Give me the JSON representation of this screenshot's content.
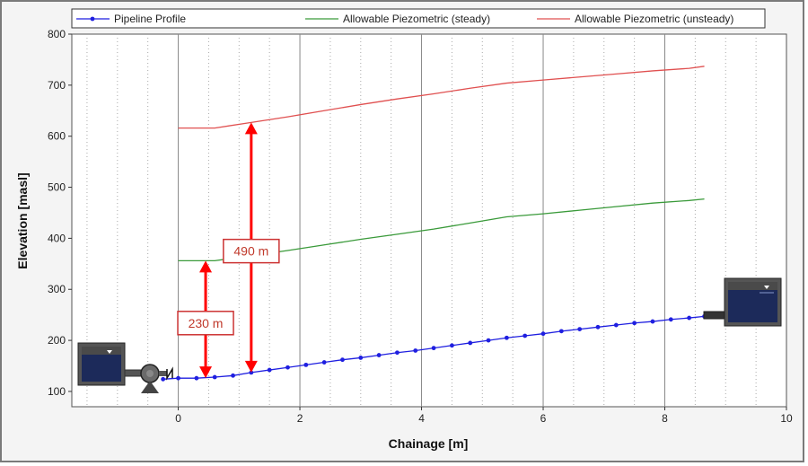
{
  "chart_data": {
    "type": "line",
    "xlabel": "Chainage [m]",
    "ylabel": "Elevation [masl]",
    "xlim": [
      -1.75,
      10
    ],
    "ylim": [
      70,
      800
    ],
    "x_ticks": [
      0,
      2,
      4,
      6,
      8,
      10
    ],
    "y_ticks": [
      100,
      200,
      300,
      400,
      500,
      600,
      700,
      800
    ],
    "grid": "vertical solid major, dotted minor",
    "legend_position": "top",
    "series": [
      {
        "name": "Pipeline Profile",
        "color": "#1f1fe0",
        "marker": "circle",
        "x": [
          -0.25,
          0.0,
          0.3,
          0.6,
          0.9,
          1.2,
          1.5,
          1.8,
          2.1,
          2.4,
          2.7,
          3.0,
          3.3,
          3.6,
          3.9,
          4.2,
          4.5,
          4.8,
          5.1,
          5.4,
          5.7,
          6.0,
          6.3,
          6.6,
          6.9,
          7.2,
          7.5,
          7.8,
          8.1,
          8.4,
          8.65
        ],
        "y": [
          124,
          126,
          126,
          128,
          131,
          137,
          142,
          147,
          152,
          157,
          162,
          166,
          171,
          176,
          180,
          185,
          190,
          195,
          200,
          205,
          209,
          213,
          218,
          222,
          226,
          230,
          234,
          237,
          241,
          244,
          247
        ]
      },
      {
        "name": "Allowable Piezometric (steady)",
        "color": "#3a9a3a",
        "x": [
          0.0,
          0.6,
          1.2,
          1.8,
          2.4,
          3.0,
          3.6,
          4.2,
          4.8,
          5.4,
          6.0,
          6.6,
          7.2,
          7.8,
          8.4,
          8.65
        ],
        "y": [
          356,
          356,
          366,
          376,
          387,
          398,
          408,
          418,
          430,
          442,
          448,
          455,
          462,
          469,
          474,
          477
        ]
      },
      {
        "name": "Allowable Piezometric (unsteady)",
        "color": "#e05050",
        "x": [
          0.0,
          0.6,
          1.2,
          1.8,
          2.4,
          3.0,
          3.6,
          4.2,
          4.8,
          5.4,
          6.0,
          6.6,
          7.2,
          7.8,
          8.4,
          8.65
        ],
        "y": [
          616,
          616,
          627,
          638,
          650,
          662,
          673,
          683,
          694,
          704,
          710,
          716,
          722,
          728,
          733,
          737
        ]
      }
    ],
    "annotations": [
      {
        "label": "230 m",
        "x": 0.45,
        "from": 126,
        "to": 356
      },
      {
        "label": "490 m",
        "x": 1.2,
        "from": 137,
        "to": 627
      }
    ]
  }
}
